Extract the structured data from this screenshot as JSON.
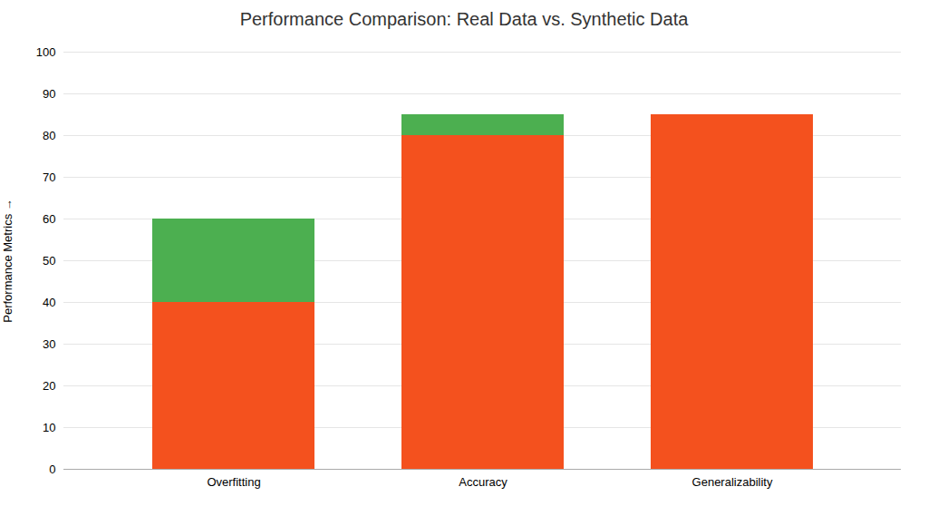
{
  "chart_data": {
    "type": "bar",
    "stacked": true,
    "title": "Performance Comparison: Real Data vs. Synthetic Data",
    "ylabel": "Performance Metrics",
    "categories": [
      "Overfitting",
      "Accuracy",
      "Generalizability"
    ],
    "series": [
      {
        "color": "#F4511E",
        "values": [
          40,
          80,
          85
        ]
      },
      {
        "color": "#4CAF50",
        "values": [
          20,
          5,
          0
        ]
      }
    ],
    "ylim": [
      0,
      100
    ],
    "yticks": [
      0,
      10,
      20,
      30,
      40,
      50,
      60,
      70,
      80,
      90,
      100
    ],
    "grid": true
  }
}
